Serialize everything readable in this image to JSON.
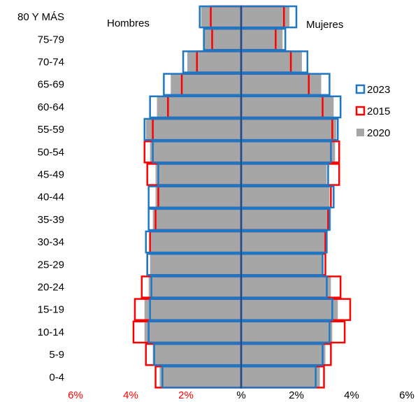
{
  "chart_data": {
    "type": "bar",
    "subtype": "population-pyramid",
    "categories": [
      "80 Y MÁS",
      "75-79",
      "70-74",
      "65-69",
      "60-64",
      "55-59",
      "50-54",
      "45-49",
      "40-44",
      "35-39",
      "30-34",
      "25-29",
      "20-24",
      "15-19",
      "10-14",
      "5-9",
      "0-4"
    ],
    "group_labels": {
      "left": "Hombres",
      "right": "Mujeres"
    },
    "x_ticks": [
      "6%",
      "4%",
      "2%",
      "%",
      "2%",
      "4%",
      "6%"
    ],
    "x_tick_values": [
      -6,
      -4,
      -2,
      0,
      2,
      4,
      6
    ],
    "xlim": [
      -6,
      6
    ],
    "x_tick_color": "#ff0000",
    "legend_position": "right",
    "series": [
      {
        "name": "2023",
        "style": "outline",
        "color": "#1f77c4",
        "hombres": [
          1.5,
          1.35,
          2.1,
          2.8,
          3.3,
          3.5,
          3.2,
          3.0,
          3.35,
          3.35,
          3.45,
          3.4,
          3.25,
          3.3,
          3.35,
          3.15,
          2.85
        ],
        "mujeres": [
          2.0,
          1.6,
          2.4,
          3.2,
          3.6,
          3.5,
          3.25,
          3.15,
          3.35,
          3.2,
          3.1,
          2.95,
          3.1,
          3.3,
          3.2,
          2.95,
          2.7
        ]
      },
      {
        "name": "2015",
        "style": "outline",
        "color": "#ff0000",
        "hombres": [
          1.1,
          1.05,
          1.6,
          2.15,
          2.65,
          3.2,
          3.5,
          3.4,
          3.0,
          3.1,
          3.3,
          3.4,
          3.6,
          3.85,
          3.9,
          3.45,
          3.1
        ],
        "mujeres": [
          1.55,
          1.25,
          1.8,
          2.45,
          2.95,
          3.3,
          3.55,
          3.55,
          3.25,
          3.15,
          3.05,
          3.05,
          3.6,
          3.95,
          3.75,
          3.25,
          3.0
        ]
      },
      {
        "name": "2020",
        "style": "filled",
        "color": "#a6a6a6",
        "hombres": [
          1.45,
          1.35,
          1.95,
          2.55,
          3.05,
          3.45,
          3.3,
          3.1,
          3.1,
          3.2,
          3.3,
          3.3,
          3.35,
          3.5,
          3.5,
          3.2,
          2.95
        ],
        "mujeres": [
          1.75,
          1.5,
          2.2,
          2.9,
          3.35,
          3.45,
          3.4,
          3.1,
          3.2,
          3.25,
          3.05,
          2.95,
          3.25,
          3.5,
          3.3,
          3.05,
          2.85
        ]
      }
    ]
  }
}
